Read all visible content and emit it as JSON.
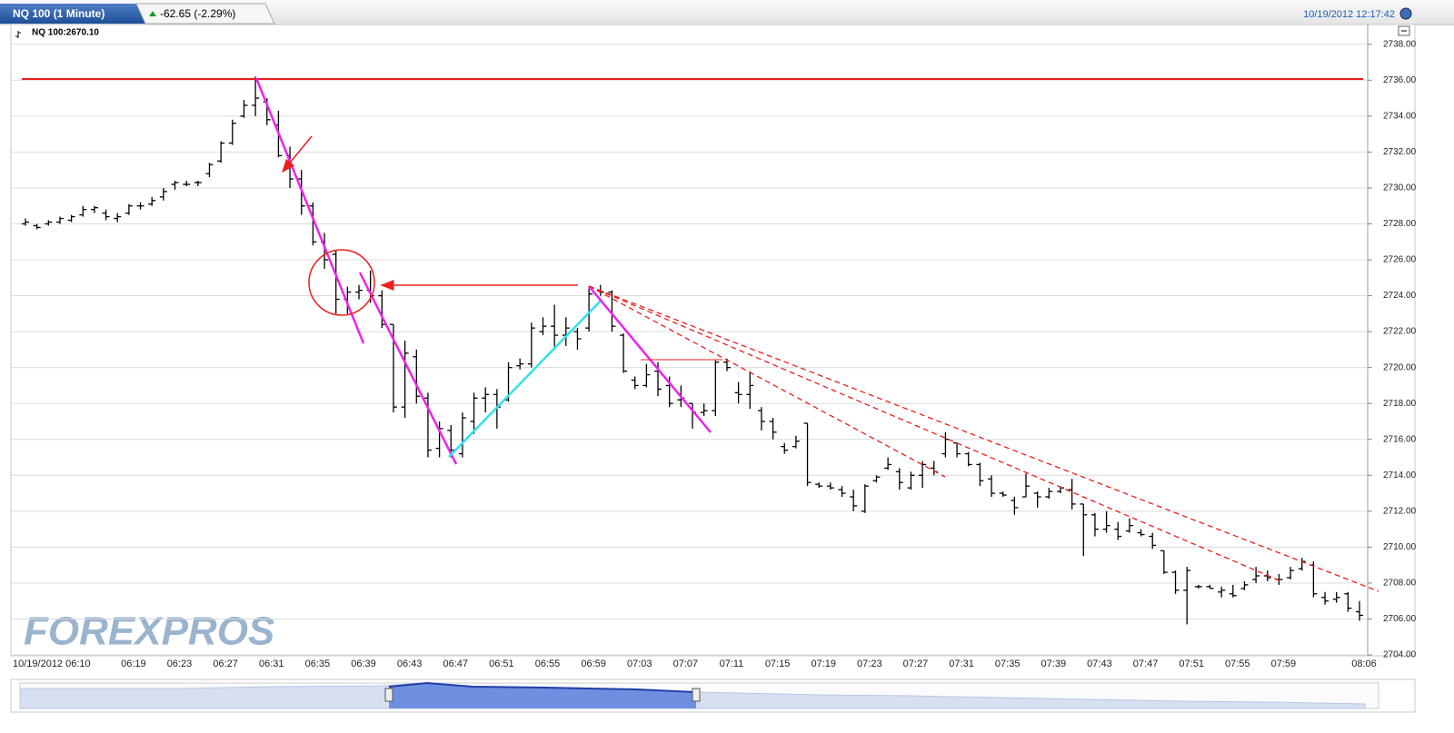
{
  "chart_data": {
    "type": "ohlc",
    "title": "NQ 100 (1 Minute)",
    "change": "-62.65 (-2.29%)",
    "timestamp": "10/19/2012 12:17:42",
    "legend": "NQ 100:2670.10",
    "watermark": "FOREXPROS",
    "categories": [
      "10/19/2012 06:10",
      null,
      null,
      null,
      null,
      null,
      null,
      null,
      null,
      "06:19",
      null,
      null,
      null,
      "06:23",
      null,
      null,
      null,
      "06:27",
      null,
      null,
      null,
      "06:31",
      null,
      null,
      null,
      "06:35",
      null,
      null,
      null,
      "06:39",
      null,
      null,
      null,
      "06:43",
      null,
      null,
      null,
      "06:47",
      null,
      null,
      null,
      "06:51",
      null,
      null,
      null,
      "06:55",
      null,
      null,
      null,
      "06:59",
      null,
      null,
      null,
      "07:03",
      null,
      null,
      null,
      "07:07",
      null,
      null,
      null,
      "07:11",
      null,
      null,
      null,
      "07:15",
      null,
      null,
      null,
      "07:19",
      null,
      null,
      null,
      "07:23",
      null,
      null,
      null,
      "07:27",
      null,
      null,
      null,
      "07:31",
      null,
      null,
      null,
      "07:35",
      null,
      null,
      null,
      "07:39",
      null,
      null,
      null,
      "07:43",
      null,
      null,
      null,
      "07:47",
      null,
      null,
      null,
      "07:51",
      null,
      null,
      null,
      "07:55",
      null,
      null,
      null,
      "07:59",
      null,
      null,
      null,
      null,
      null,
      null,
      "08:06"
    ],
    "series": [
      {
        "color": "#000000",
        "open": [
          2728.0,
          2727.9,
          2728.0,
          2728.1,
          2728.2,
          2728.5,
          2728.8,
          2728.6,
          2728.3,
          2728.6,
          2729.0,
          2729.1,
          2729.5,
          2730.2,
          2730.2,
          2730.3,
          2730.8,
          2731.5,
          2732.5,
          2734.0,
          2734.6,
          2734.8,
          2733.5,
          2731.8,
          2730.5,
          2729.0,
          2727.0,
          2726.3,
          2723.8,
          2724.2,
          2724.3,
          2724.0,
          2722.4,
          2717.8,
          2720.6,
          2718.3,
          2715.5,
          2716.5,
          2715.2,
          2717.0,
          2718.3,
          2718.5,
          2718.2,
          2720.1,
          2720.2,
          2722.0,
          2722.3,
          2721.8,
          2722.0,
          2722.2,
          2724.3,
          2724.2,
          2721.8,
          2719.3,
          2719.0,
          2719.8,
          2719.0,
          2718.2,
          2718.0,
          2717.5,
          2717.6,
          2720.3,
          2718.6,
          2718.5,
          2717.6,
          2717.0,
          2715.6,
          2715.6,
          2716.9,
          2713.5,
          2713.4,
          2713.2,
          2712.8,
          2712.0,
          2713.7,
          2714.4,
          2714.2,
          2713.3,
          2714.0,
          2714.4,
          2715.2,
          2715.8,
          2715.2,
          2714.6,
          2713.8,
          2713.0,
          2712.6,
          2712.8,
          2713.0,
          2712.8,
          2713.1,
          2713.2,
          2712.4,
          2711.8,
          2711.0,
          2711.0,
          2710.9,
          2710.8,
          2710.6,
          2709.8,
          2708.6,
          2707.6,
          2707.8,
          2707.8,
          2707.5,
          2707.4,
          2707.7,
          2708.2,
          2708.4,
          2708.2,
          2708.3,
          2708.8,
          2709.0,
          2707.2,
          2707.1,
          2707.4,
          2706.4
        ],
        "high": [
          2728.3,
          2728.0,
          2728.2,
          2728.4,
          2728.5,
          2729.0,
          2729.0,
          2728.8,
          2728.6,
          2729.1,
          2729.2,
          2729.5,
          2730.0,
          2730.4,
          2730.4,
          2730.4,
          2731.4,
          2732.6,
          2733.8,
          2734.9,
          2736.2,
          2735.0,
          2734.3,
          2732.3,
          2731.0,
          2729.2,
          2727.5,
          2726.5,
          2724.5,
          2724.6,
          2725.4,
          2724.3,
          2722.4,
          2721.5,
          2721.0,
          2718.6,
          2717.0,
          2716.8,
          2717.5,
          2718.6,
          2718.9,
          2718.8,
          2720.3,
          2720.5,
          2722.5,
          2722.8,
          2723.5,
          2722.8,
          2722.2,
          2724.4,
          2724.6,
          2724.3,
          2721.9,
          2719.5,
          2720.2,
          2720.3,
          2719.5,
          2719.0,
          2718.0,
          2718.0,
          2720.4,
          2720.5,
          2719.2,
          2719.8,
          2717.8,
          2717.2,
          2715.8,
          2716.2,
          2716.9,
          2713.6,
          2713.6,
          2713.4,
          2713.2,
          2713.5,
          2714.0,
          2715.0,
          2714.4,
          2714.2,
          2714.8,
          2714.8,
          2716.4,
          2715.8,
          2715.3,
          2714.7,
          2714.0,
          2713.1,
          2712.8,
          2714.1,
          2713.1,
          2713.3,
          2713.4,
          2713.8,
          2712.4,
          2711.9,
          2712.0,
          2711.4,
          2711.6,
          2711.0,
          2710.8,
          2709.8,
          2708.7,
          2708.9,
          2707.9,
          2707.9,
          2707.8,
          2707.9,
          2708.1,
          2708.9,
          2708.7,
          2708.5,
          2708.9,
          2709.4,
          2709.2,
          2707.5,
          2707.5,
          2707.5,
          2707.0
        ],
        "low": [
          2727.9,
          2727.7,
          2727.9,
          2728.0,
          2728.1,
          2728.4,
          2728.6,
          2728.2,
          2728.1,
          2728.5,
          2728.8,
          2729.0,
          2729.3,
          2729.9,
          2730.1,
          2730.1,
          2730.6,
          2731.4,
          2732.4,
          2733.9,
          2734.0,
          2733.5,
          2731.7,
          2730.0,
          2728.5,
          2726.8,
          2725.5,
          2723.0,
          2723.0,
          2723.8,
          2723.6,
          2722.2,
          2717.5,
          2717.2,
          2718.0,
          2715.0,
          2715.0,
          2715.0,
          2715.0,
          2716.3,
          2717.5,
          2716.6,
          2718.1,
          2719.9,
          2720.0,
          2721.8,
          2721.0,
          2721.2,
          2721.0,
          2722.0,
          2724.0,
          2722.0,
          2719.7,
          2718.8,
          2718.9,
          2718.4,
          2717.8,
          2717.8,
          2716.6,
          2717.3,
          2717.3,
          2719.8,
          2718.0,
          2717.7,
          2716.5,
          2716.0,
          2715.2,
          2715.5,
          2713.4,
          2713.3,
          2713.2,
          2712.8,
          2712.0,
          2711.9,
          2713.6,
          2714.3,
          2713.2,
          2713.2,
          2713.3,
          2714.0,
          2715.0,
          2715.0,
          2714.5,
          2713.4,
          2712.8,
          2712.8,
          2711.8,
          2712.8,
          2712.2,
          2712.7,
          2713.0,
          2712.1,
          2709.5,
          2710.6,
          2710.8,
          2710.4,
          2710.8,
          2710.6,
          2709.9,
          2708.5,
          2707.4,
          2705.7,
          2707.7,
          2707.7,
          2707.2,
          2707.2,
          2707.6,
          2708.0,
          2708.1,
          2707.9,
          2708.2,
          2708.7,
          2707.2,
          2706.8,
          2706.9,
          2706.4,
          2705.9
        ],
        "close": [
          2728.1,
          2727.8,
          2728.1,
          2728.3,
          2728.4,
          2728.8,
          2728.9,
          2728.4,
          2728.4,
          2729.0,
          2729.0,
          2729.3,
          2729.8,
          2730.3,
          2730.2,
          2730.3,
          2731.3,
          2732.5,
          2733.6,
          2734.6,
          2735.0,
          2733.8,
          2731.8,
          2730.5,
          2729.0,
          2727.0,
          2726.0,
          2723.8,
          2724.2,
          2724.3,
          2724.0,
          2722.4,
          2717.8,
          2720.8,
          2718.4,
          2715.4,
          2716.6,
          2715.4,
          2717.2,
          2718.3,
          2718.5,
          2717.8,
          2720.0,
          2720.2,
          2722.2,
          2722.3,
          2721.8,
          2722.2,
          2721.6,
          2724.1,
          2724.2,
          2722.3,
          2719.8,
          2719.0,
          2719.6,
          2718.8,
          2718.0,
          2718.3,
          2717.5,
          2717.6,
          2720.3,
          2720.0,
          2718.5,
          2719.0,
          2717.0,
          2716.4,
          2715.4,
          2715.9,
          2713.6,
          2713.4,
          2713.3,
          2713.0,
          2712.3,
          2713.4,
          2713.9,
          2714.6,
          2713.6,
          2714.0,
          2714.6,
          2714.2,
          2716.0,
          2715.2,
          2714.6,
          2713.7,
          2713.0,
          2712.9,
          2712.2,
          2713.4,
          2712.8,
          2713.1,
          2713.3,
          2712.4,
          2711.8,
          2711.0,
          2711.2,
          2710.6,
          2711.2,
          2710.7,
          2710.1,
          2708.6,
          2707.6,
          2708.7,
          2707.8,
          2707.7,
          2707.6,
          2707.3,
          2707.9,
          2708.4,
          2708.3,
          2708.2,
          2708.7,
          2709.2,
          2707.4,
          2707.0,
          2707.2,
          2706.6,
          2706.2
        ]
      }
    ],
    "ylim": [
      2704,
      2739.1
    ],
    "yticks": [
      {
        "value": 2704,
        "label": "2704.00"
      },
      {
        "value": 2706,
        "label": "2706.00"
      },
      {
        "value": 2708,
        "label": "2708.00"
      },
      {
        "value": 2710,
        "label": "2710.00"
      },
      {
        "value": 2712,
        "label": "2712.00"
      },
      {
        "value": 2714,
        "label": "2714.00"
      },
      {
        "value": 2716,
        "label": "2716.00"
      },
      {
        "value": 2718,
        "label": "2718.00"
      },
      {
        "value": 2720,
        "label": "2720.00"
      },
      {
        "value": 2722,
        "label": "2722.00"
      },
      {
        "value": 2724,
        "label": "2724.00"
      },
      {
        "value": 2726,
        "label": "2726.00"
      },
      {
        "value": 2728,
        "label": "2728.00"
      },
      {
        "value": 2730,
        "label": "2730.00"
      },
      {
        "value": 2732,
        "label": "2732.00"
      },
      {
        "value": 2734,
        "label": "2734.00"
      },
      {
        "value": 2736,
        "label": "2736.00"
      },
      {
        "value": 2738,
        "label": "2738.00"
      }
    ],
    "grid": true
  }
}
